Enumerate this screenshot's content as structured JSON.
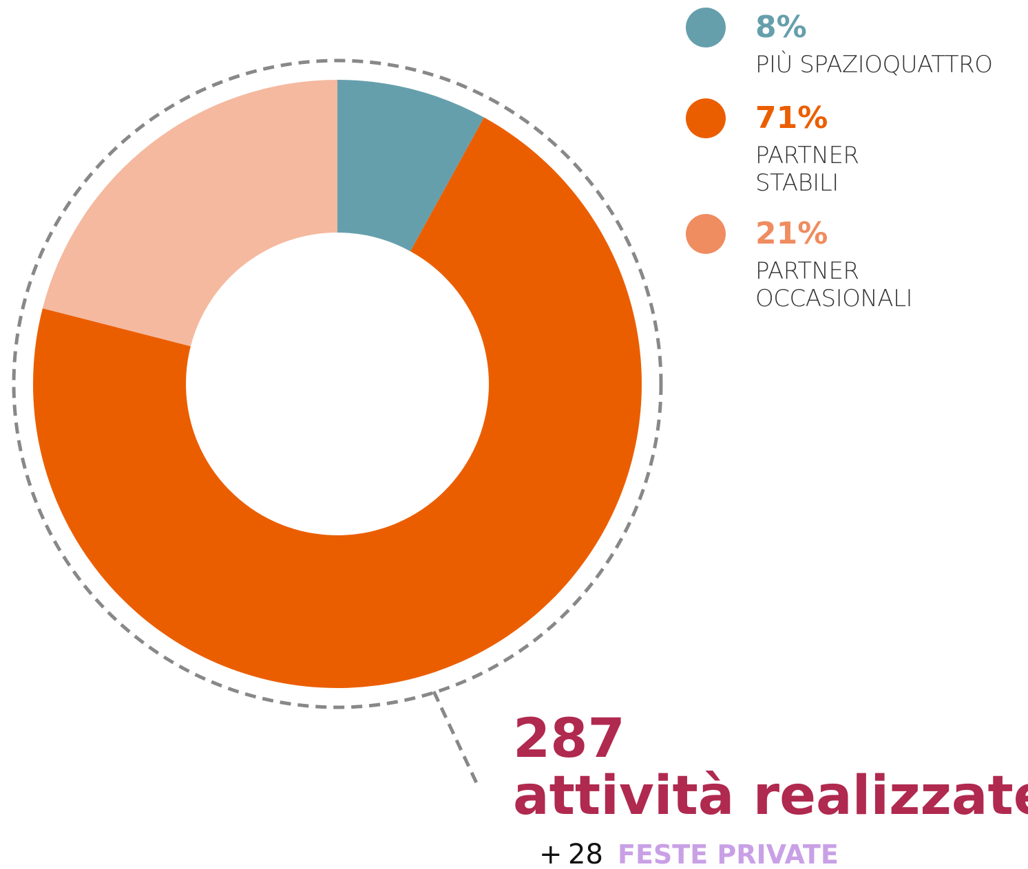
{
  "chart_data": {
    "type": "pie",
    "categories": [
      "PIÙ SPAZIOQUATTRO",
      "PARTNER\nSTABILI",
      "PARTNER\nOCCASIONALI"
    ],
    "values": [
      8,
      71,
      21
    ],
    "value_labels": [
      "8%",
      "71%",
      "21%"
    ],
    "colors": [
      "#669fac",
      "#eb5e00",
      "#f5b99f"
    ],
    "legend_colors": [
      "#669fac",
      "#eb5e00",
      "#ef8c60"
    ],
    "total": {
      "value": 287,
      "label": "attività realizzate"
    },
    "extra": {
      "prefix": "+",
      "value": 28,
      "label": "FESTE PRIVATE"
    }
  }
}
